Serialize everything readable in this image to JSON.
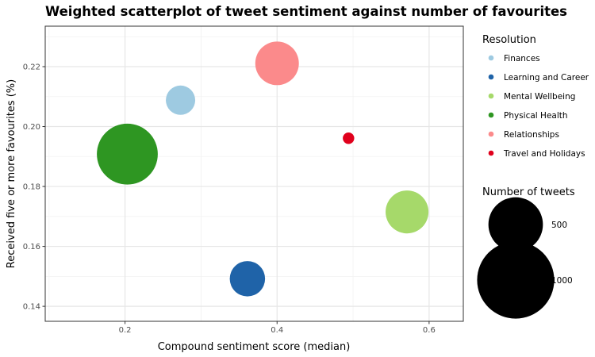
{
  "chart_data": {
    "type": "scatter",
    "title": "Weighted scatterplot of tweet sentiment against number of favourites",
    "xlabel": "Compound sentiment score (median)",
    "ylabel": "Received five or more favourites (%)",
    "xlim": [
      0.095,
      0.645
    ],
    "ylim": [
      0.135,
      0.2335
    ],
    "x_ticks": [
      0.2,
      0.4,
      0.6
    ],
    "x_tick_labels": [
      "0.2",
      "0.4",
      "0.6"
    ],
    "y_ticks": [
      0.14,
      0.16,
      0.18,
      0.2,
      0.22
    ],
    "y_tick_labels": [
      "0.14",
      "0.16",
      "0.18",
      "0.20",
      "0.22"
    ],
    "grid": true,
    "color_legend_title": "Resolution",
    "size_legend_title": "Number of tweets",
    "size_legend_values": [
      500,
      1000
    ],
    "size_legend_labels": [
      "500",
      "1000"
    ],
    "legend_position": "right",
    "series": [
      {
        "name": "Finances",
        "color": "#9ecae1",
        "x": 0.273,
        "y": 0.2088,
        "size": 145
      },
      {
        "name": "Learning and Career",
        "color": "#1f63a8",
        "x": 0.361,
        "y": 0.1492,
        "size": 210
      },
      {
        "name": "Mental Wellbeing",
        "color": "#a6d96a",
        "x": 0.571,
        "y": 0.1715,
        "size": 310
      },
      {
        "name": "Physical Health",
        "color": "#2e9622",
        "x": 0.203,
        "y": 0.1908,
        "size": 625
      },
      {
        "name": "Relationships",
        "color": "#fb8a8b",
        "x": 0.4,
        "y": 0.2211,
        "size": 320
      },
      {
        "name": "Travel and Holidays",
        "color": "#e0001c",
        "x": 0.494,
        "y": 0.1961,
        "size": 22
      }
    ]
  }
}
